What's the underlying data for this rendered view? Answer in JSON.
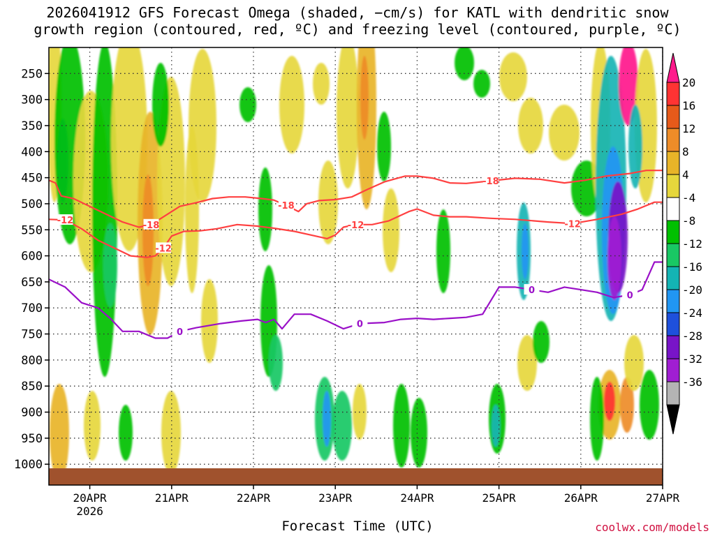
{
  "title_line1": "2026041912 GFS Forecast Omega (shaded, −cm/s) for KATL with dendritic snow",
  "title_line2": "growth region (contoured, red, ºC) and freezing level (contoured, purple, ºC)",
  "credit": "coolwx.com/models",
  "chart_data": {
    "type": "heatmap",
    "title": "2026041912 GFS Forecast Omega (shaded, −cm/s) for KATL with dendritic snow growth region (contoured, red, ºC) and freezing level (contoured, purple, ºC)",
    "xlabel": "Forecast Time (UTC)",
    "ylabel": "",
    "x_ticks": [
      "20APR",
      "21APR",
      "22APR",
      "23APR",
      "24APR",
      "25APR",
      "26APR",
      "27APR"
    ],
    "x_year_label": "2026",
    "xlim_days": [
      -0.5,
      7.0
    ],
    "y_levels_hpa": [
      250,
      300,
      350,
      400,
      450,
      500,
      550,
      600,
      650,
      700,
      750,
      800,
      850,
      900,
      950,
      1000
    ],
    "ylim_hpa": [
      200,
      1040
    ],
    "ground_level_hpa": 985,
    "colorbar_labels": [
      20,
      16,
      12,
      8,
      4,
      -4,
      -8,
      -12,
      -16,
      -20,
      -24,
      -28,
      -32,
      -36
    ],
    "colorbar_colors": [
      "#ff1a8c",
      "#ff3333",
      "#e65a1a",
      "#ee8c28",
      "#e8b428",
      "#e6d73c",
      "#ffffff",
      "#00c000",
      "#19c864",
      "#14b4b4",
      "#2196f3",
      "#1e50dc",
      "#7814c8",
      "#a01ed2",
      "#b4b4b4",
      "#000000"
    ],
    "contours": [
      {
        "name": "-18C",
        "color": "#ff4040",
        "label": "-18",
        "points": [
          [
            -0.5,
            455
          ],
          [
            -0.42,
            460
          ],
          [
            -0.35,
            485
          ],
          [
            -0.2,
            490
          ],
          [
            0,
            505
          ],
          [
            0.2,
            520
          ],
          [
            0.4,
            535
          ],
          [
            0.6,
            545
          ],
          [
            0.75,
            540
          ],
          [
            0.95,
            520
          ],
          [
            1.1,
            505
          ],
          [
            1.3,
            498
          ],
          [
            1.5,
            490
          ],
          [
            1.7,
            487
          ],
          [
            1.9,
            487
          ],
          [
            2.1,
            490
          ],
          [
            2.25,
            493
          ],
          [
            2.4,
            503
          ],
          [
            2.55,
            515
          ],
          [
            2.65,
            500
          ],
          [
            2.8,
            494
          ],
          [
            3.0,
            492
          ],
          [
            3.2,
            487
          ],
          [
            3.4,
            472
          ],
          [
            3.6,
            458
          ],
          [
            3.85,
            447
          ],
          [
            4.0,
            447
          ],
          [
            4.2,
            451
          ],
          [
            4.4,
            460
          ],
          [
            4.6,
            461
          ],
          [
            4.9,
            456
          ],
          [
            5.2,
            451
          ],
          [
            5.5,
            453
          ],
          [
            5.8,
            460
          ],
          [
            6.05,
            455
          ],
          [
            6.3,
            447
          ],
          [
            6.6,
            442
          ],
          [
            6.8,
            436
          ],
          [
            7.0,
            436
          ]
        ]
      },
      {
        "name": "-12C",
        "color": "#ff4040",
        "label": "-12",
        "points": [
          [
            -0.5,
            530
          ],
          [
            -0.3,
            531
          ],
          [
            -0.1,
            548
          ],
          [
            0.1,
            570
          ],
          [
            0.3,
            585
          ],
          [
            0.5,
            600
          ],
          [
            0.7,
            603
          ],
          [
            0.8,
            600
          ],
          [
            0.9,
            585
          ],
          [
            1.0,
            562
          ],
          [
            1.15,
            553
          ],
          [
            1.35,
            552
          ],
          [
            1.55,
            548
          ],
          [
            1.8,
            540
          ],
          [
            2.05,
            543
          ],
          [
            2.25,
            547
          ],
          [
            2.5,
            553
          ],
          [
            2.7,
            560
          ],
          [
            2.9,
            567
          ],
          [
            3.0,
            560
          ],
          [
            3.1,
            545
          ],
          [
            3.25,
            540
          ],
          [
            3.45,
            540
          ],
          [
            3.65,
            533
          ],
          [
            3.9,
            515
          ],
          [
            4.0,
            510
          ],
          [
            4.2,
            522
          ],
          [
            4.4,
            525
          ],
          [
            4.6,
            525
          ],
          [
            4.9,
            528
          ],
          [
            5.2,
            530
          ],
          [
            5.6,
            535
          ],
          [
            5.9,
            538
          ],
          [
            6.2,
            530
          ],
          [
            6.5,
            520
          ],
          [
            6.7,
            510
          ],
          [
            6.9,
            497
          ],
          [
            7.0,
            497
          ]
        ]
      },
      {
        "name": "0C",
        "color": "#9a10c8",
        "label": "0",
        "points": [
          [
            -0.5,
            645
          ],
          [
            -0.3,
            660
          ],
          [
            -0.1,
            690
          ],
          [
            0.1,
            700
          ],
          [
            0.25,
            720
          ],
          [
            0.4,
            745
          ],
          [
            0.6,
            745
          ],
          [
            0.8,
            758
          ],
          [
            0.95,
            758
          ],
          [
            1.1,
            745
          ],
          [
            1.3,
            738
          ],
          [
            1.6,
            730
          ],
          [
            1.85,
            725
          ],
          [
            2.05,
            722
          ],
          [
            2.15,
            728
          ],
          [
            2.25,
            722
          ],
          [
            2.35,
            740
          ],
          [
            2.5,
            712
          ],
          [
            2.7,
            712
          ],
          [
            2.9,
            725
          ],
          [
            3.1,
            740
          ],
          [
            3.3,
            730
          ],
          [
            3.6,
            728
          ],
          [
            3.8,
            722
          ],
          [
            4.0,
            720
          ],
          [
            4.2,
            722
          ],
          [
            4.4,
            720
          ],
          [
            4.6,
            718
          ],
          [
            4.8,
            712
          ],
          [
            5.0,
            660
          ],
          [
            5.2,
            660
          ],
          [
            5.4,
            665
          ],
          [
            5.6,
            670
          ],
          [
            5.8,
            660
          ],
          [
            6.0,
            665
          ],
          [
            6.2,
            670
          ],
          [
            6.4,
            680
          ],
          [
            6.6,
            675
          ],
          [
            6.75,
            665
          ],
          [
            6.9,
            612
          ],
          [
            7.0,
            612
          ]
        ]
      }
    ]
  }
}
